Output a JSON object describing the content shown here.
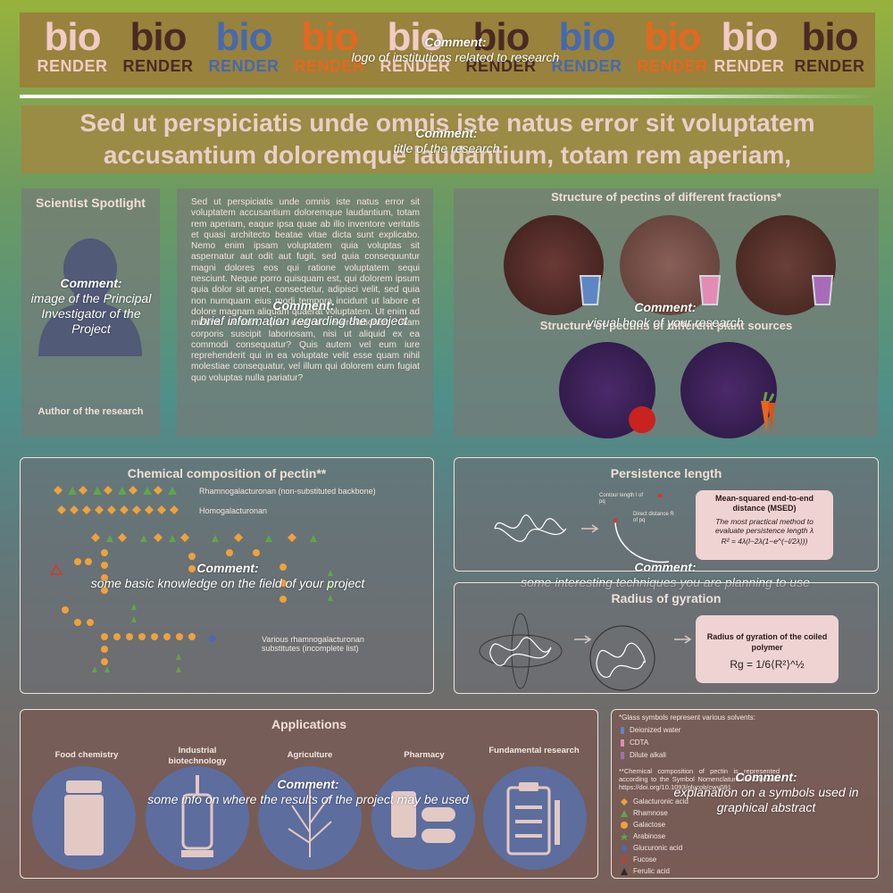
{
  "logos": [
    {
      "bio": "bio",
      "render": "RENDER",
      "bio_color": "#f1cbc6",
      "render_color": "#f1cbc6"
    },
    {
      "bio": "bio",
      "render": "RENDER",
      "bio_color": "#4a2a22",
      "render_color": "#4a2a22"
    },
    {
      "bio": "bio",
      "render": "RENDER",
      "bio_color": "#4569b0",
      "render_color": "#4569b0"
    },
    {
      "bio": "bio",
      "render": "RENDER",
      "bio_color": "#e6671f",
      "render_color": "#e6671f"
    },
    {
      "bio": "bio",
      "render": "RENDER",
      "bio_color": "#f1cbc6",
      "render_color": "#f1cbc6"
    },
    {
      "bio": "bio",
      "render": "RENDER",
      "bio_color": "#4a2a22",
      "render_color": "#4a2a22"
    },
    {
      "bio": "bio",
      "render": "RENDER",
      "bio_color": "#4569b0",
      "render_color": "#4569b0"
    },
    {
      "bio": "bio",
      "render": "RENDER",
      "bio_color": "#e6671f",
      "render_color": "#e6671f"
    },
    {
      "bio": "bio",
      "render": "RENDER",
      "bio_color": "#f1cbc6",
      "render_color": "#f1cbc6"
    },
    {
      "bio": "bio",
      "render": "RENDER",
      "bio_color": "#4a2a22",
      "render_color": "#4a2a22"
    }
  ],
  "comments": {
    "label": "Comment:",
    "logos": "logo of institutions related to research",
    "title": "title of the research",
    "image": "image of the Principal Investigator of the Project",
    "brief": "brief information regarding the project",
    "visual": "visual hook of your research",
    "basic": "some basic knowledge on the field of your project",
    "techniques": "some interesting techniques you are planning to use",
    "applications": "some info on where the results of the project may be used",
    "symbols": "explanation on a symbols used in graphical abstract"
  },
  "title": {
    "line1": "Sed ut perspiciatis unde omnis iste natus error sit voluptatem",
    "line2": "accusantium doloremque laudantium, totam rem aperiam,"
  },
  "spotlight": {
    "heading": "Scientist Spotlight",
    "author": "Author of the research"
  },
  "brief_text": "Sed ut perspiciatis unde omnis iste natus error sit voluptatem accusantium doloremque laudantium, totam rem aperiam, eaque ipsa quae ab illo inventore veritatis et quasi architecto beatae vitae dicta sunt explicabo. Nemo enim ipsam voluptatem quia voluptas sit aspernatur aut odit aut fugit, sed quia consequuntur magni dolores eos qui ratione voluptatem sequi nesciunt. Neque porro quisquam est, qui dolorem ipsum quia dolor sit amet, consectetur, adipisci velit, sed quia non numquam eius modi tempora incidunt ut labore et dolore magnam aliquam quaerat voluptatem. Ut enim ad minima veniam, quis nostrum exercitationem ullam corporis suscipit laboriosam, nisi ut aliquid ex ea commodi consequatur? Quis autem vel eum iure reprehenderit qui in ea voluptate velit esse quam nihil molestiae consequatur, vel illum qui dolorem eum fugiat quo voluptas nulla pariatur?",
  "visual": {
    "heading1": "Structure of pectins of different fractions*",
    "heading2": "Structure of pectins of different plant sources"
  },
  "chemical": {
    "heading": "Chemical composition of pectin**",
    "rg_label": "Rhamnogalacturonan (non-substituted backbone)",
    "hg_label": "Homogalacturonan",
    "subs_label": "Various rhamnogalacturonan substitutes (incomplete list)"
  },
  "persistence": {
    "heading": "Persistence length",
    "contour": "Contour length l of pq",
    "direct": "Direct distance R of pq",
    "box_title": "Mean-squared end-to-end distance (MSED)",
    "box_text": "The most practical method to evaluate persistence length λ",
    "formula": "R² = 4λ(l−2λ(1−e^(−l/2λ)))"
  },
  "gyration": {
    "heading": "Radius of gyration",
    "box_title": "Radius of gyration of the coiled polymer",
    "formula": "Rg = 1/6⟨R²⟩^½"
  },
  "applications": {
    "heading": "Applications",
    "items": [
      "Food chemistry",
      "Industrial biotechnology",
      "Agriculture",
      "Pharmacy",
      "Fundamental research"
    ]
  },
  "notes": {
    "glass_title": "*Glass symbols represent various solvents:",
    "solvents": [
      {
        "label": "Deionized water",
        "color": "#5f86c4"
      },
      {
        "label": "CDTA",
        "color": "#e48bb3"
      },
      {
        "label": "Dilute alkali",
        "color": "#a86bb8"
      }
    ],
    "chem_title": "**Chemical composition of pectin is represented according to the Symbol Nomenclature for Glycans: https://doi.org/10.1093/glycob/cwv091",
    "sugars": [
      {
        "label": "Galacturonic acid",
        "color": "#f0a13a"
      },
      {
        "label": "Rhamnose",
        "color": "#5fa648"
      },
      {
        "label": "Galactose",
        "color": "#f0a13a"
      },
      {
        "label": "Arabinose",
        "color": "#5fa648"
      },
      {
        "label": "Glucuronic acid",
        "color": "#5067b0"
      },
      {
        "label": "Fucose",
        "color": "#d23a2a"
      },
      {
        "label": "Ferulic acid",
        "color": "#2a2a2a"
      }
    ]
  }
}
